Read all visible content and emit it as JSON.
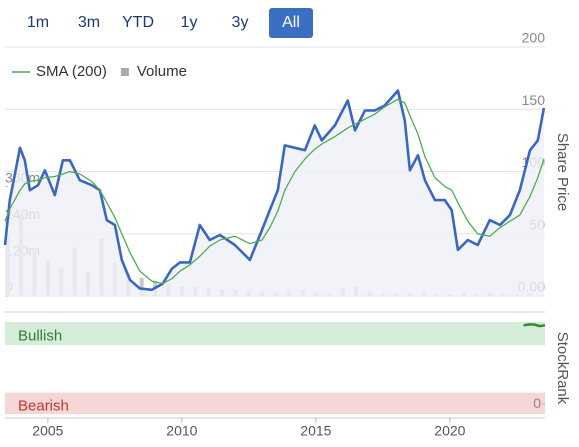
{
  "range_buttons": [
    "1m",
    "3m",
    "YTD",
    "1y",
    "3y",
    "All"
  ],
  "selected_range": "All",
  "chart_data": [
    {
      "type": "line",
      "y_label": "Share Price",
      "legend": "top-left",
      "grid": true,
      "xlim": [
        2003.4,
        2023.55
      ],
      "xticks": [
        2005,
        2010,
        2015,
        2020
      ],
      "ylim": [
        0,
        200
      ],
      "yticks": [
        {
          "value": 0,
          "label": "0.00"
        },
        50,
        100,
        150,
        200
      ],
      "y2lim": [
        0,
        820
      ],
      "y2ticks": [
        0,
        {
          "value": 120,
          "label": "120m"
        },
        {
          "value": 240,
          "label": "240m"
        },
        {
          "value": 360,
          "label": "360m"
        }
      ],
      "series": [
        {
          "color": "#3a67c0",
          "fill": true,
          "x": [
            2003.4,
            2003.58,
            2003.96,
            2004.14,
            2004.33,
            2004.63,
            2004.89,
            2005.26,
            2005.56,
            2005.82,
            2006.19,
            2006.64,
            2006.94,
            2007.2,
            2007.5,
            2007.76,
            2008.06,
            2008.43,
            2008.88,
            2009.29,
            2009.63,
            2009.93,
            2010.3,
            2010.67,
            2011.04,
            2011.42,
            2011.98,
            2012.54,
            2012.99,
            2013.28,
            2013.58,
            2013.84,
            2014.22,
            2014.59,
            2014.96,
            2015.22,
            2015.71,
            2016.19,
            2016.46,
            2016.83,
            2017.2,
            2017.57,
            2018.06,
            2018.32,
            2018.51,
            2018.81,
            2019.07,
            2019.44,
            2019.81,
            2020.07,
            2020.3,
            2020.67,
            2021.04,
            2021.49,
            2021.87,
            2022.24,
            2022.61,
            2022.99,
            2023.28,
            2023.51
          ],
          "values": [
            41,
            77,
            119,
            109,
            85,
            89,
            101,
            81,
            109,
            109,
            93,
            89,
            85,
            61,
            57,
            29,
            13,
            6,
            5,
            10,
            22,
            27,
            27,
            57,
            45,
            49,
            41,
            29,
            53,
            69,
            85,
            121,
            119,
            117,
            137,
            125,
            137,
            157,
            133,
            149,
            149,
            153,
            165,
            141,
            101,
            113,
            93,
            77,
            77,
            69,
            37,
            45,
            41,
            61,
            57,
            65,
            85,
            117,
            125,
            151
          ]
        },
        {
          "name": "SMA (200)",
          "color": "#4caf50",
          "x": [
            2003.4,
            2003.58,
            2003.96,
            2004.14,
            2004.33,
            2004.63,
            2004.89,
            2005.26,
            2005.56,
            2005.82,
            2006.19,
            2006.64,
            2006.94,
            2007.2,
            2007.5,
            2007.76,
            2008.06,
            2008.43,
            2008.88,
            2009.29,
            2009.63,
            2009.93,
            2010.3,
            2010.67,
            2011.04,
            2011.42,
            2011.98,
            2012.54,
            2012.99,
            2013.28,
            2013.58,
            2013.84,
            2014.22,
            2014.59,
            2014.96,
            2015.22,
            2015.71,
            2016.19,
            2016.46,
            2016.83,
            2017.2,
            2017.57,
            2018.06,
            2018.32,
            2018.51,
            2018.81,
            2019.07,
            2019.44,
            2019.81,
            2020.07,
            2020.3,
            2020.67,
            2021.04,
            2021.49,
            2021.87,
            2022.24,
            2022.61,
            2022.99,
            2023.28,
            2023.51
          ],
          "values": [
            60,
            70,
            85,
            90,
            92,
            93,
            95,
            96,
            98,
            100,
            98,
            92,
            85,
            75,
            63,
            50,
            35,
            20,
            12,
            10,
            14,
            20,
            25,
            32,
            40,
            45,
            48,
            42,
            45,
            55,
            68,
            85,
            100,
            110,
            118,
            122,
            128,
            135,
            138,
            142,
            146,
            152,
            158,
            155,
            145,
            130,
            112,
            95,
            88,
            85,
            75,
            60,
            50,
            48,
            55,
            60,
            65,
            80,
            95,
            110
          ]
        },
        {
          "name": "Volume",
          "type": "bar",
          "axis": "y2",
          "color": "#c8c8c8",
          "x": [
            2003.5,
            2004.0,
            2004.5,
            2005.0,
            2005.5,
            2006.0,
            2006.5,
            2007.0,
            2007.5,
            2008.0,
            2008.5,
            2009.0,
            2009.5,
            2010.0,
            2010.5,
            2011.0,
            2011.5,
            2012.0,
            2012.5,
            2013.0,
            2013.5,
            2014.0,
            2014.5,
            2015.0,
            2015.5,
            2016.0,
            2016.5,
            2017.0,
            2017.5,
            2018.0,
            2018.5,
            2019.0,
            2019.5,
            2020.0,
            2020.5,
            2021.0,
            2021.5,
            2022.0,
            2022.5,
            2023.0
          ],
          "values": [
            200,
            260,
            150,
            120,
            90,
            160,
            80,
            190,
            110,
            70,
            60,
            50,
            40,
            30,
            30,
            25,
            20,
            20,
            15,
            15,
            12,
            15,
            20,
            12,
            10,
            25,
            30,
            15,
            10,
            8,
            10,
            12,
            8,
            6,
            10,
            8,
            10,
            6,
            5,
            8
          ]
        }
      ]
    },
    {
      "type": "line",
      "y_label": "StockRank",
      "ylim": [
        -12,
        100
      ],
      "yticks": [
        0
      ],
      "bands": [
        {
          "label": "Bullish",
          "range": [
            72,
            100
          ],
          "color": "#d5ecd9",
          "text_color": "#2e7d32"
        },
        {
          "label": "Bearish",
          "range": [
            -12,
            14
          ],
          "color": "#f6d6d6",
          "text_color": "#c0392b"
        }
      ],
      "series": [
        {
          "color": "#2e8b3a",
          "x": [
            2022.75,
            2022.95,
            2023.15,
            2023.35,
            2023.55
          ],
          "values": [
            96,
            97,
            97,
            95,
            96
          ]
        }
      ]
    }
  ]
}
